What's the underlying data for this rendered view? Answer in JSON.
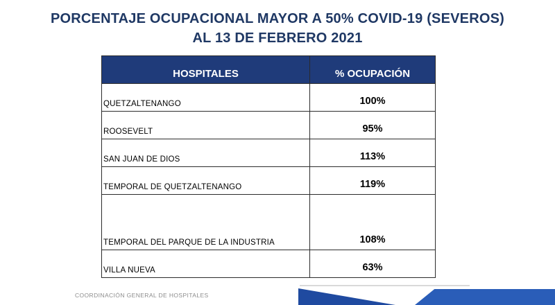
{
  "title": {
    "line1": "PORCENTAJE OCUPACIONAL MAYOR A 50% COVID-19 (SEVEROS)",
    "line2": "AL 13 DE FEBRERO 2021"
  },
  "table": {
    "headers": {
      "hospitals": "HOSPITALES",
      "occupancy": "% OCUPACIÓN"
    },
    "rows": [
      {
        "hospital": "QUETZALTENANGO",
        "occupancy": "100%"
      },
      {
        "hospital": "ROOSEVELT",
        "occupancy": "95%"
      },
      {
        "hospital": "SAN JUAN DE DIOS",
        "occupancy": "113%"
      },
      {
        "hospital": "TEMPORAL DE QUETZALTENANGO",
        "occupancy": "119%"
      },
      {
        "hospital": "TEMPORAL DEL PARQUE DE LA INDUSTRIA",
        "occupancy": "108%"
      },
      {
        "hospital": "VILLA NUEVA",
        "occupancy": "63%"
      }
    ]
  },
  "footer": {
    "text": "COORDINACIÓN GENERAL DE HOSPITALES"
  },
  "colors": {
    "title": "#1f3864",
    "header_bg": "#1f3b7a",
    "accent_blue": "#2a5db8"
  }
}
